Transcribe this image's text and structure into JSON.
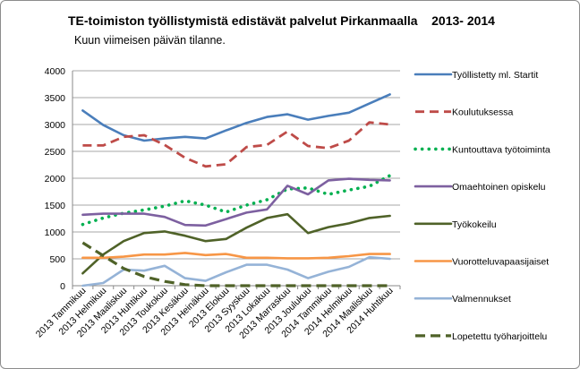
{
  "chart_data": {
    "type": "line",
    "title": "TE-toimiston työllistymistä edistävät palvelut Pirkanmaalla    2013- 2014",
    "subtitle": "Kuun viimeisen päivän tilanne.",
    "xlabel": "",
    "ylabel": "",
    "ylim": [
      0,
      4000
    ],
    "yticks": [
      0,
      500,
      1000,
      1500,
      2000,
      2500,
      3000,
      3500,
      4000
    ],
    "grid": true,
    "legend": "right",
    "categories": [
      "2013 Tammikuu",
      "2013 Helmikuu",
      "2013 Maaliskuu",
      "2013 Huhtikuu",
      "2013 Toukokuu",
      "2013 Kesäkuu",
      "2013 Heinäkuu",
      "2013 Elokuu",
      "2013 Syyskuu",
      "2013 Lokakuu",
      "2013 Marraskuu",
      "2013 Joulukuu",
      "2014 Tammikuu",
      "2014 Helmikuu",
      "2014 Maaliskuu",
      "2014 Huhtikuu"
    ],
    "x_tick_labels": [
      "2013 Tammikuu",
      "2013 Helmikuu",
      "2013 Maaliskuu",
      "2013 Huhtikuu",
      "2013 Toukokuu",
      "2013 Kesäkuu",
      "2013 Heinäkuu",
      "2013 Elokuu",
      "2013 Syyskuu",
      "2013 Lokakuu",
      "2013 Marraskuu",
      "2013 Joulukuu",
      "2014 Tammikuu",
      "2014 Helmikuu",
      "2014 Maaliskuu",
      "2014 Huhtikuu"
    ],
    "series": [
      {
        "name": "Työllistetty ml. Startit",
        "color": "#4a7ebb",
        "style": "solid",
        "values": [
          3260,
          2990,
          2800,
          2700,
          2740,
          2770,
          2740,
          2890,
          3030,
          3140,
          3190,
          3090,
          3160,
          3220,
          3390,
          3560
        ]
      },
      {
        "name": "Koulutuksessa",
        "color": "#be4b48",
        "style": "dashed",
        "values": [
          2610,
          2610,
          2770,
          2800,
          2620,
          2380,
          2220,
          2260,
          2580,
          2620,
          2870,
          2600,
          2560,
          2700,
          3040,
          3000
        ]
      },
      {
        "name": "Kuntouttava työtoiminta",
        "color": "#00b050",
        "style": "dotted",
        "values": [
          1140,
          1260,
          1350,
          1410,
          1480,
          1580,
          1500,
          1370,
          1500,
          1600,
          1800,
          1820,
          1700,
          1780,
          1850,
          2050
        ]
      },
      {
        "name": "Omaehtoinen opiskelu",
        "color": "#7d60a0",
        "style": "solid",
        "values": [
          1320,
          1340,
          1340,
          1340,
          1280,
          1130,
          1120,
          1240,
          1360,
          1420,
          1860,
          1700,
          1960,
          1990,
          1970,
          1960
        ]
      },
      {
        "name": "Työkokeilu",
        "color": "#4f6228",
        "style": "solid",
        "values": [
          230,
          580,
          830,
          980,
          1010,
          930,
          830,
          870,
          1080,
          1260,
          1330,
          980,
          1090,
          1160,
          1260,
          1300
        ]
      },
      {
        "name": "Vuorotteluvapaasijaiset",
        "color": "#f79646",
        "style": "solid",
        "values": [
          520,
          520,
          540,
          580,
          580,
          610,
          570,
          590,
          520,
          520,
          510,
          510,
          520,
          550,
          590,
          590
        ]
      },
      {
        "name": "Valmennukset",
        "color": "#95b3d7",
        "style": "solid",
        "values": [
          0,
          50,
          300,
          280,
          370,
          140,
          90,
          250,
          390,
          390,
          300,
          140,
          260,
          350,
          530,
          500
        ]
      },
      {
        "name": "Lopetettu työharjoittelu",
        "color": "#4f6228",
        "style": "dashed-thick",
        "values": [
          800,
          560,
          320,
          170,
          80,
          20,
          0,
          0,
          0,
          0,
          0,
          0,
          0,
          0,
          0,
          0
        ]
      }
    ]
  }
}
